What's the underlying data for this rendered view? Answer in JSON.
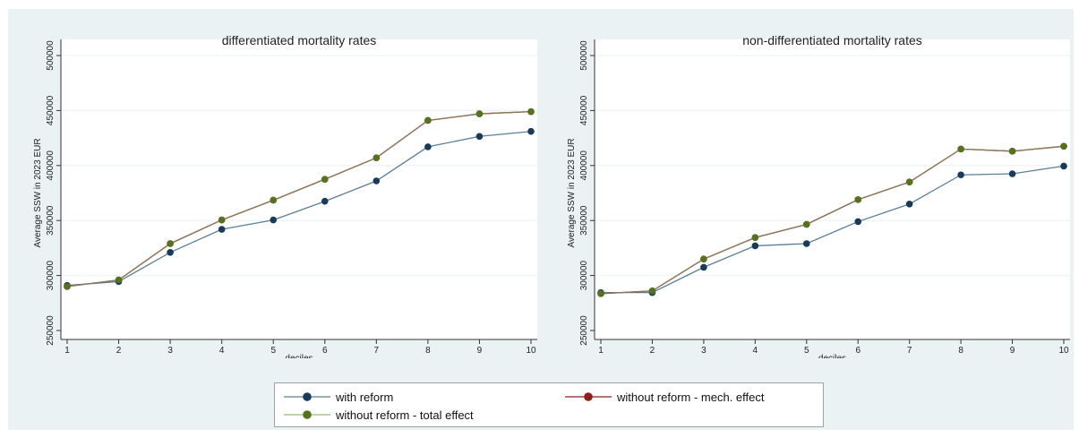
{
  "chart_data": [
    {
      "type": "line",
      "title": "differentiated mortality rates",
      "xlabel": "deciles",
      "ylabel": "Average SSW in 2023 EUR",
      "x": [
        1,
        2,
        3,
        4,
        5,
        6,
        7,
        8,
        9,
        10
      ],
      "ylim": [
        250000,
        500000
      ],
      "yticks": [
        "250000",
        "300000",
        "350000",
        "400000",
        "450000",
        "500000"
      ],
      "xticks": [
        "1",
        "2",
        "3",
        "4",
        "5",
        "6",
        "7",
        "8",
        "9",
        "10"
      ],
      "grid": true,
      "series": [
        {
          "name": "with reform",
          "key": "reform",
          "values": [
            291000,
            294500,
            321000,
            342000,
            350500,
            367500,
            386000,
            417000,
            426500,
            431000
          ]
        },
        {
          "name": "without reform - mech. effect",
          "key": "mech",
          "values": [
            290000,
            296000,
            329000,
            350500,
            368500,
            387500,
            407000,
            441000,
            447000,
            449000
          ]
        },
        {
          "name": "without reform - total effect",
          "key": "total",
          "values": [
            290000,
            296000,
            329000,
            350500,
            368500,
            387500,
            407000,
            441000,
            447000,
            449000
          ]
        }
      ]
    },
    {
      "type": "line",
      "title": "non-differentiated mortality rates",
      "xlabel": "deciles",
      "ylabel": "Average SSW in 2023 EUR",
      "x": [
        1,
        2,
        3,
        4,
        5,
        6,
        7,
        8,
        9,
        10
      ],
      "ylim": [
        250000,
        500000
      ],
      "yticks": [
        "250000",
        "300000",
        "350000",
        "400000",
        "450000",
        "500000"
      ],
      "xticks": [
        "1",
        "2",
        "3",
        "4",
        "5",
        "6",
        "7",
        "8",
        "9",
        "10"
      ],
      "grid": true,
      "series": [
        {
          "name": "with reform",
          "key": "reform",
          "values": [
            284500,
            284500,
            307500,
            327000,
            329000,
            349000,
            365000,
            391500,
            392500,
            399500
          ]
        },
        {
          "name": "without reform - mech. effect",
          "key": "mech",
          "values": [
            283500,
            286000,
            315000,
            334500,
            346500,
            369000,
            385000,
            415000,
            413000,
            417500
          ]
        },
        {
          "name": "without reform - total effect",
          "key": "total",
          "values": [
            283500,
            286000,
            315000,
            334500,
            346500,
            369000,
            385000,
            415000,
            413000,
            417500
          ]
        }
      ]
    }
  ],
  "legend": {
    "placement": "bottom-center",
    "items": [
      {
        "label": "with reform",
        "key": "reform"
      },
      {
        "label": "without reform - mech. effect",
        "key": "mech"
      },
      {
        "label": "without reform - total effect",
        "key": "total"
      }
    ]
  },
  "colors": {
    "reform_line": "#5a7f97",
    "reform_marker": "#1a3a5a",
    "mech_line": "#8f1e1e",
    "mech_marker": "#8f1e1e",
    "total_line": "#8a7a5a",
    "total_marker": "#55731f",
    "legend_total_line": "#9ab97a",
    "plot_bg": "#ffffff",
    "figure_bg": "#eaf2f3",
    "grid": "#eaf2f3",
    "axis": "#333333"
  }
}
